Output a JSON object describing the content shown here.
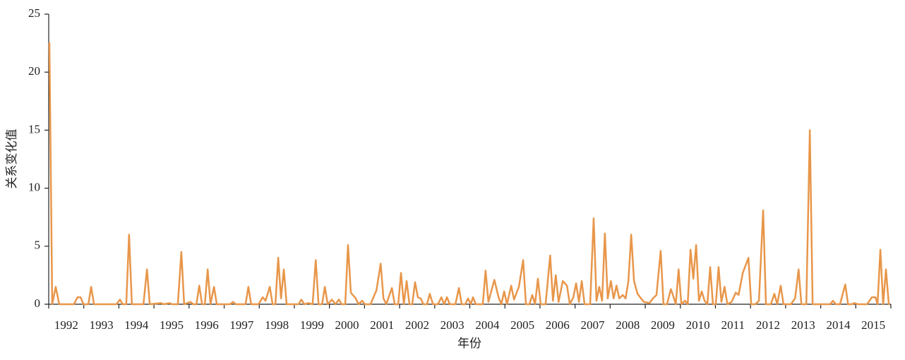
{
  "chart_data": {
    "type": "line",
    "y_label": "关系变化值",
    "x_label": "年份",
    "color": "#e8964a",
    "xlim": [
      1992,
      2016
    ],
    "xticks": [
      1992,
      1993,
      1994,
      1995,
      1996,
      1997,
      1998,
      1999,
      2000,
      2001,
      2002,
      2003,
      2004,
      2005,
      2006,
      2007,
      2008,
      2009,
      2010,
      2011,
      2012,
      2013,
      2014,
      2015,
      2016
    ],
    "year_labels": [
      "1992",
      "1993",
      "1994",
      "1995",
      "1996",
      "1997",
      "1998",
      "1999",
      "2000",
      "2001",
      "2002",
      "2003",
      "2004",
      "2005",
      "2006",
      "2007",
      "2008",
      "2009",
      "2010",
      "2011",
      "2012",
      "2013",
      "2014",
      "2015"
    ],
    "ylim": [
      0,
      25
    ],
    "yticks": [
      0,
      5,
      10,
      15,
      20,
      25
    ],
    "x": [
      1992.02,
      1992.1,
      1992.2,
      1992.3,
      1992.72,
      1992.82,
      1992.91,
      1992.99,
      1993.13,
      1993.21,
      1993.29,
      1993.93,
      1994.03,
      1994.11,
      1994.21,
      1994.29,
      1994.37,
      1994.7,
      1994.8,
      1994.88,
      1995.2,
      1995.28,
      1995.44,
      1995.52,
      1995.68,
      1995.78,
      1995.86,
      1996.04,
      1996.12,
      1996.21,
      1996.29,
      1996.37,
      1996.45,
      1996.53,
      1996.61,
      1996.71,
      1996.79,
      1997.17,
      1997.25,
      1997.33,
      1997.61,
      1997.69,
      1997.77,
      1997.98,
      1998.1,
      1998.18,
      1998.3,
      1998.38,
      1998.46,
      1998.54,
      1998.62,
      1998.7,
      1998.78,
      1999.12,
      1999.2,
      1999.28,
      1999.4,
      1999.52,
      1999.61,
      1999.69,
      1999.79,
      1999.87,
      1999.95,
      2000.07,
      2000.17,
      2000.27,
      2000.35,
      2000.45,
      2000.53,
      2000.61,
      2000.75,
      2000.83,
      2000.93,
      2001.01,
      2001.17,
      2001.34,
      2001.46,
      2001.54,
      2001.62,
      2001.78,
      2001.86,
      2001.96,
      2002.04,
      2002.12,
      2002.2,
      2002.28,
      2002.36,
      2002.44,
      2002.52,
      2002.6,
      2002.68,
      2002.78,
      2002.86,
      2002.95,
      2003.09,
      2003.19,
      2003.27,
      2003.35,
      2003.43,
      2003.59,
      2003.69,
      2003.77,
      2003.87,
      2003.95,
      2004.03,
      2004.09,
      2004.17,
      2004.37,
      2004.45,
      2004.53,
      2004.7,
      2004.82,
      2004.9,
      2004.98,
      2005.06,
      2005.18,
      2005.26,
      2005.4,
      2005.52,
      2005.6,
      2005.7,
      2005.78,
      2005.86,
      2005.94,
      2006.02,
      2006.16,
      2006.29,
      2006.37,
      2006.45,
      2006.53,
      2006.65,
      2006.77,
      2006.85,
      2006.95,
      2007.03,
      2007.11,
      2007.19,
      2007.27,
      2007.43,
      2007.53,
      2007.61,
      2007.69,
      2007.77,
      2007.85,
      2007.93,
      2008.02,
      2008.1,
      2008.18,
      2008.26,
      2008.36,
      2008.44,
      2008.52,
      2008.6,
      2008.68,
      2008.78,
      2008.88,
      2008.96,
      2009.12,
      2009.22,
      2009.32,
      2009.44,
      2009.52,
      2009.62,
      2009.73,
      2009.81,
      2009.87,
      2009.95,
      2010.03,
      2010.13,
      2010.21,
      2010.29,
      2010.37,
      2010.45,
      2010.53,
      2010.61,
      2010.69,
      2010.77,
      2010.85,
      2010.93,
      2011.01,
      2011.09,
      2011.17,
      2011.26,
      2011.34,
      2011.46,
      2011.58,
      2011.66,
      2011.78,
      2011.94,
      2012.02,
      2012.14,
      2012.24,
      2012.36,
      2012.44,
      2012.58,
      2012.68,
      2012.76,
      2012.86,
      2012.94,
      2013.15,
      2013.27,
      2013.37,
      2013.45,
      2013.59,
      2013.69,
      2013.77,
      2014.27,
      2014.35,
      2014.43,
      2014.55,
      2014.7,
      2014.78,
      2014.88,
      2014.96,
      2015.06,
      2015.32,
      2015.46,
      2015.56,
      2015.62,
      2015.7,
      2015.78,
      2015.86,
      2015.94
    ],
    "values": [
      22.5,
      0,
      1.5,
      0,
      0,
      0.6,
      0.6,
      0,
      0,
      1.5,
      0,
      0,
      0.4,
      0,
      0,
      6,
      0,
      0,
      3,
      0,
      0.1,
      0,
      0.1,
      0,
      0,
      4.5,
      0,
      0.2,
      0,
      0,
      1.6,
      0,
      0,
      3,
      0,
      1.5,
      0,
      0,
      0.2,
      0,
      0,
      1.5,
      0,
      0,
      0.6,
      0.3,
      1.5,
      0,
      0,
      4,
      0.5,
      3,
      0,
      0,
      0.4,
      0,
      0.1,
      0,
      3.8,
      0,
      0,
      1.5,
      0,
      0.4,
      0,
      0.4,
      0,
      0,
      5.1,
      1,
      0.5,
      0,
      0.3,
      0,
      0,
      1.2,
      3.5,
      0.5,
      0,
      1.4,
      0,
      0,
      2.7,
      0,
      2,
      0,
      0,
      1.9,
      0.6,
      0.5,
      0,
      0,
      0.9,
      0,
      0,
      0.6,
      0,
      0.6,
      0,
      0,
      1.4,
      0,
      0,
      0.5,
      0,
      0.6,
      0,
      0,
      2.9,
      0.2,
      2.1,
      0.6,
      0,
      1.1,
      0,
      1.6,
      0.4,
      1.5,
      3.8,
      0,
      0,
      0.8,
      0,
      2.2,
      0,
      0,
      4.2,
      0.3,
      2.5,
      0.2,
      2,
      1.6,
      0,
      0.6,
      1.8,
      0.2,
      2,
      0,
      0,
      7.4,
      0.3,
      1.5,
      0.3,
      6.1,
      0.5,
      2,
      0.5,
      1.6,
      0.5,
      0.8,
      0.5,
      2,
      6,
      2,
      0.9,
      0.5,
      0.2,
      0.1,
      0.5,
      0.8,
      4.6,
      0,
      0,
      1.3,
      0.6,
      0,
      3,
      0,
      0.3,
      0,
      4.7,
      2.2,
      5.1,
      0.3,
      1.1,
      0.3,
      0,
      3.2,
      0,
      0,
      3.2,
      0.2,
      1.5,
      0,
      0.2,
      1,
      0.8,
      2.7,
      4,
      0,
      0,
      0.3,
      8.1,
      0,
      0,
      0.9,
      0,
      1.6,
      0,
      0,
      0.5,
      3,
      0,
      0,
      15,
      0,
      0,
      0.3,
      0,
      0,
      1.7,
      0,
      0,
      0.1,
      0,
      0,
      0.6,
      0.6,
      0,
      4.7,
      0,
      3,
      0
    ]
  }
}
